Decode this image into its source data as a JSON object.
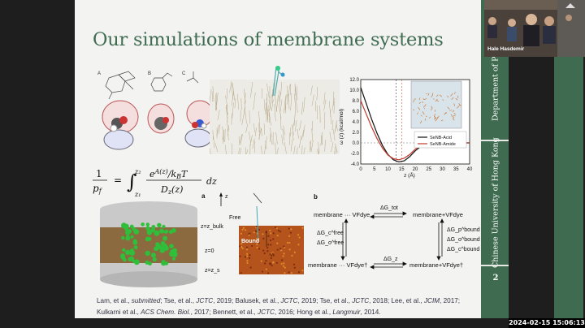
{
  "slide": {
    "title": "Our simulations of membrane systems",
    "sidebar_top": "Department of Physics",
    "sidebar_bottom": "Chinese University of Hong Kong",
    "page_number": "2",
    "equation": {
      "lhs": "1/p_f",
      "rhs": "∫ e^{A(z)/k_BT} / D_z(z) dz",
      "lower": "z₁",
      "upper": "z₂"
    },
    "pmf_chart": {
      "ylabel": "ω (z) (kcal/mol)",
      "xlabel": "z (Å)",
      "legend": [
        "SeNB-Acid",
        "SeNB-Amide"
      ]
    },
    "panel_a": {
      "letter": "a",
      "labels": [
        "z",
        "Free",
        "z=z_bulk",
        "Bound",
        "z=0",
        "z=z_s"
      ]
    },
    "panel_b": {
      "letter": "b",
      "top_left": "membrane ··· VFdye",
      "top_right": "membrane+VFdye",
      "bottom_left": "membrane ··· VFdye†",
      "bottom_right": "membrane+VFdye†",
      "top_arrow": "ΔG_tot",
      "bottom_arrow": "ΔG_z",
      "left_arrow_1": "ΔG_c^free",
      "left_arrow_2": "ΔG_o^free",
      "right_arrow_1": "ΔG_p^bound",
      "right_arrow_2": "ΔG_o^bound",
      "right_arrow_3": "ΔG_c^bound"
    },
    "molecule_labels": [
      "A",
      "B",
      "C"
    ],
    "citation": {
      "part1": "Lam, et al., ",
      "submitted": "submitted",
      "part2": "; Tse, et al., ",
      "j1": "JCTC",
      "part3": ", 2019; Balusek, et al., ",
      "j2": "JCTC",
      "part4": ", 2019; Tse, et al., ",
      "j3": "JCTC",
      "part5": ", 2018; Lee, et al., ",
      "j4": "JCIM",
      "part6": ", 2017; Kulkarni et al., ",
      "j5": "ACS Chem. Biol.",
      "part7": ", 2017; Bennett, et al., ",
      "j6": "JCTC",
      "part8": ", 2016; Hong et al., ",
      "j7": "Langmuir",
      "part9": ", 2014."
    }
  },
  "chart_data": {
    "type": "line",
    "title": "",
    "xlabel": "z (Å)",
    "ylabel": "ω (z) (kcal/mol)",
    "xlim": [
      0,
      40
    ],
    "ylim": [
      -4,
      12
    ],
    "xticks": [
      0,
      5,
      10,
      15,
      20,
      25,
      30,
      35,
      40
    ],
    "yticks": [
      -4.0,
      -2.0,
      0.0,
      2.0,
      4.0,
      6.0,
      8.0,
      10.0,
      12.0
    ],
    "legend_position": "bottom-right",
    "series": [
      {
        "name": "SeNB-Acid",
        "color": "#111111",
        "x": [
          0,
          2,
          4,
          6,
          8,
          10,
          12,
          14,
          16,
          18,
          20,
          22,
          24,
          26,
          28,
          30,
          35,
          40
        ],
        "y": [
          10.5,
          7.5,
          4.5,
          1.8,
          -0.5,
          -2.2,
          -3.2,
          -3.6,
          -3.4,
          -2.6,
          -1.5,
          -0.7,
          -0.2,
          0.0,
          0.0,
          0.0,
          0.0,
          0.0
        ]
      },
      {
        "name": "SeNB-Amide",
        "color": "#c0392b",
        "x": [
          0,
          2,
          4,
          6,
          8,
          10,
          12,
          14,
          16,
          18,
          20,
          22,
          24,
          26,
          28,
          30,
          35,
          40
        ],
        "y": [
          8.0,
          5.5,
          3.0,
          0.8,
          -1.0,
          -2.3,
          -3.0,
          -3.2,
          -2.9,
          -2.2,
          -1.2,
          -0.5,
          -0.1,
          0.0,
          0.0,
          0.0,
          0.0,
          0.0
        ]
      }
    ]
  },
  "webcam": {
    "name": "Hale Hasdemir"
  },
  "timestamp": "2024-02-15 15:06:13"
}
